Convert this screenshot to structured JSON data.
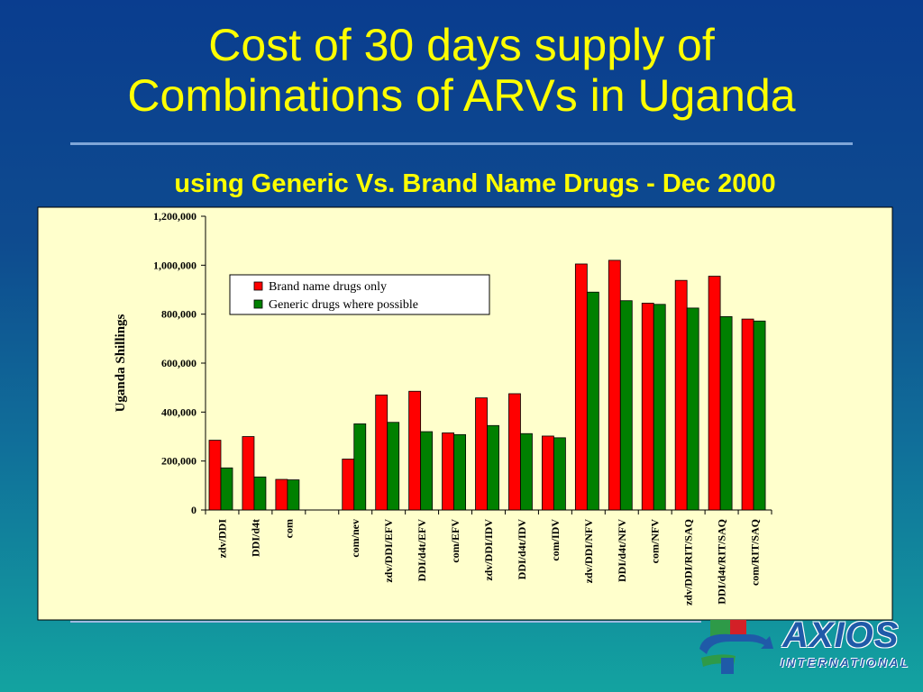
{
  "slide": {
    "title_line1": "Cost of 30 days supply of",
    "title_line2": "Combinations of ARVs in Uganda",
    "subtitle": "using Generic Vs. Brand Name Drugs - Dec 2000"
  },
  "logo": {
    "name": "AXIOS",
    "sub": "INTERNATIONAL",
    "colors": {
      "blue": "#1f5aa8",
      "red": "#d32027",
      "green": "#2e9a48"
    }
  },
  "colors": {
    "background_top": "#0a3d8f",
    "background_bottom": "#13a3a0",
    "title": "#ffff00",
    "plot_area": "#ffffcc"
  },
  "chart_data": {
    "type": "bar",
    "title": "",
    "xlabel": "",
    "ylabel": "Uganda Shillings",
    "ylim": [
      0,
      1200000
    ],
    "yticks": [
      0,
      200000,
      400000,
      600000,
      800000,
      1000000,
      1200000
    ],
    "ytick_labels": [
      "0",
      "200,000",
      "400,000",
      "600,000",
      "800,000",
      "1,000,000",
      "1,200,000"
    ],
    "grid": false,
    "legend_position": "top-center",
    "categories": [
      "zdv/DDI",
      "DDI/d4t",
      "com",
      "",
      "com/nev",
      "zdv/DDI/EFV",
      "DDI/d4t/EFV",
      "com/EFV",
      "zdv/DDI/IDV",
      "DDI/d4t/IDV",
      "com/IDV",
      "zdv/DDI/NFV",
      "DDI/d4t/NFV",
      "com/NFV",
      "zdv/DDI/RIT/SAQ",
      "DDI/d4t/RIT/SAQ",
      "com/RIT/SAQ"
    ],
    "series": [
      {
        "name": "Brand name drugs only",
        "color": "#ff0000",
        "values": [
          285000,
          300000,
          125000,
          null,
          208000,
          470000,
          485000,
          315000,
          458000,
          475000,
          302000,
          1005000,
          1020000,
          845000,
          938000,
          955000,
          780000
        ]
      },
      {
        "name": "Generic drugs where possible",
        "color": "#008000",
        "values": [
          172000,
          135000,
          123000,
          null,
          352000,
          358000,
          320000,
          308000,
          345000,
          312000,
          295000,
          890000,
          855000,
          840000,
          825000,
          790000,
          772000
        ]
      }
    ]
  }
}
